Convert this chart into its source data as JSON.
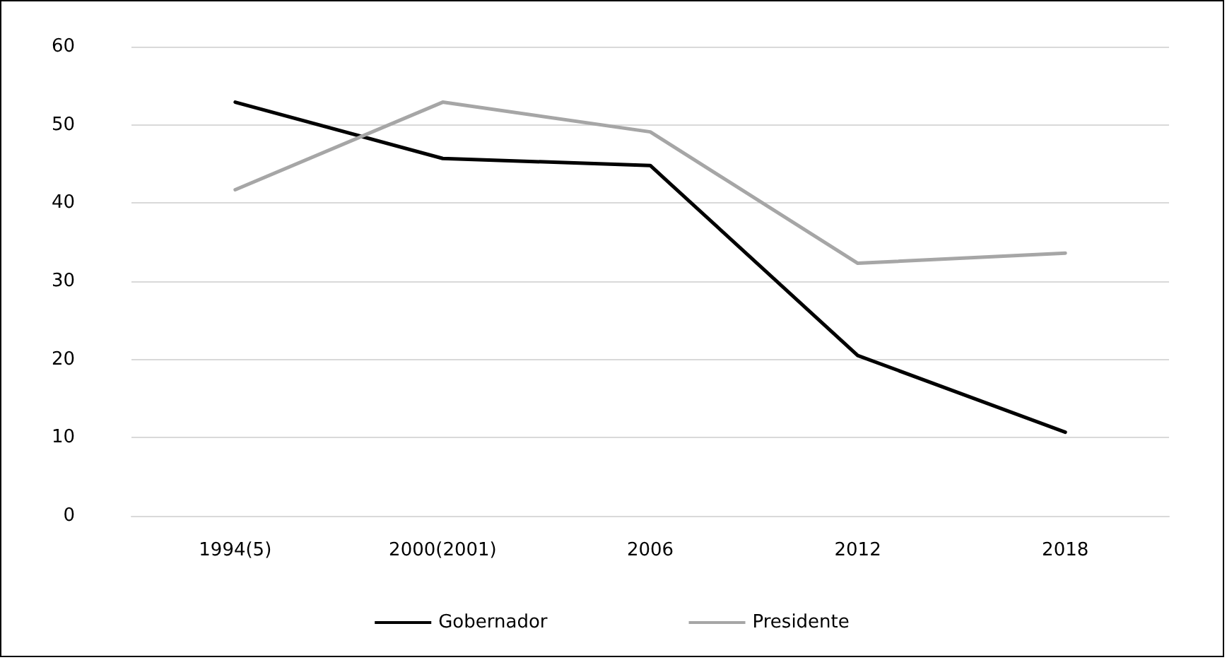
{
  "chart_data": {
    "type": "line",
    "categories": [
      "1994(5)",
      "2000(2001)",
      "2006",
      "2012",
      "2018"
    ],
    "series": [
      {
        "name": "Gobernador",
        "color": "#000000",
        "values": [
          52.9,
          45.7,
          44.8,
          20.5,
          10.7
        ]
      },
      {
        "name": "Presidente",
        "color": "#a6a6a6",
        "values": [
          41.7,
          52.9,
          49.1,
          32.3,
          33.6
        ]
      }
    ],
    "ylim": [
      0,
      60
    ],
    "yticks": [
      0,
      10,
      20,
      30,
      40,
      50,
      60
    ],
    "grid": "y",
    "legend": "bottom",
    "marker": "none",
    "line_style": "solid"
  }
}
